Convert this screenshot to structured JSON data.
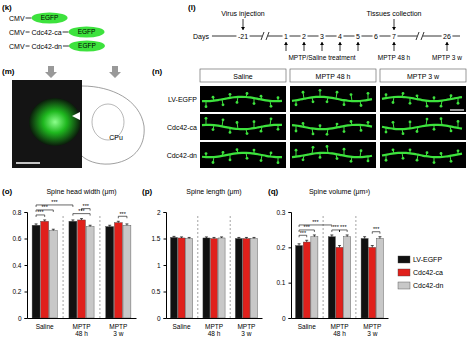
{
  "diagram": {
    "k": {
      "label": "(k)",
      "constructs": [
        {
          "promoter": "CMV",
          "reporter": "EGFP"
        },
        {
          "promoter": "CMV",
          "insert": "Cdc42-ca",
          "reporter": "EGFP"
        },
        {
          "promoter": "CMV",
          "insert": "Cdc42-dn",
          "reporter": "EGFP"
        }
      ]
    },
    "l": {
      "label": "(l)",
      "days_label": "Days",
      "days": [
        "-21",
        "1",
        "2",
        "3",
        "4",
        "5",
        "6",
        "7",
        "26"
      ],
      "top_events": [
        {
          "text": "Virus injection",
          "day": "-21"
        },
        {
          "text": "Tissues collection",
          "day": "7"
        }
      ],
      "treatment": {
        "text": "MPTP/Saline treatment",
        "days": [
          "1",
          "2",
          "3",
          "4",
          "5"
        ]
      },
      "bottom_events": [
        {
          "text": "MPTP 48 h",
          "day": "7"
        },
        {
          "text": "MPTP 3 w",
          "day": "26"
        }
      ]
    },
    "m": {
      "label": "(m)",
      "region": "CPu"
    },
    "n": {
      "label": "(n)",
      "columns": [
        "Saline",
        "MPTP 48 h",
        "MPTP 3 w"
      ],
      "rows": [
        "LV-EGFP",
        "Cdc42-ca",
        "Cdc42-dn"
      ]
    }
  },
  "chart_data": [
    {
      "type": "bar",
      "panel": "(o)",
      "title": "Spine head width (μm)",
      "categories": [
        "Saline",
        "MPTP 48 h",
        "MPTP 3 w"
      ],
      "series": [
        {
          "color": "#111111",
          "values": [
            0.7,
            0.73,
            0.69
          ],
          "errors": [
            0.01,
            0.01,
            0.01
          ]
        },
        {
          "color": "#e0201b",
          "values": [
            0.73,
            0.74,
            0.72
          ],
          "errors": [
            0.01,
            0.01,
            0.01
          ]
        },
        {
          "color": "#c8c8c8",
          "values": [
            0.66,
            0.69,
            0.7
          ],
          "errors": [
            0.01,
            0.01,
            0.01
          ]
        }
      ],
      "ylim": [
        0,
        0.8
      ],
      "yticks": [
        0,
        0.2,
        0.4,
        0.6,
        0.8
      ],
      "annotations": [
        {
          "text": "***",
          "from": [
            0,
            0
          ],
          "to": [
            0,
            1
          ]
        },
        {
          "text": "***",
          "from": [
            0,
            0
          ],
          "to": [
            0,
            2
          ]
        },
        {
          "text": "***",
          "from": [
            0,
            0
          ],
          "to": [
            1,
            0
          ]
        },
        {
          "text": "***",
          "from": [
            1,
            0
          ],
          "to": [
            1,
            2
          ]
        },
        {
          "text": "***",
          "from": [
            1,
            1
          ],
          "to": [
            1,
            2
          ]
        },
        {
          "text": "***",
          "from": [
            2,
            1
          ],
          "to": [
            2,
            2
          ]
        }
      ]
    },
    {
      "type": "bar",
      "panel": "(p)",
      "title": "Spine length (μm)",
      "categories": [
        "Saline",
        "MPTP 48 h",
        "MPTP 3 w"
      ],
      "series": [
        {
          "color": "#111111",
          "values": [
            1.52,
            1.51,
            1.5
          ],
          "errors": [
            0.02,
            0.02,
            0.02
          ]
        },
        {
          "color": "#e0201b",
          "values": [
            1.51,
            1.5,
            1.5
          ],
          "errors": [
            0.02,
            0.02,
            0.02
          ]
        },
        {
          "color": "#c8c8c8",
          "values": [
            1.5,
            1.51,
            1.5
          ],
          "errors": [
            0.02,
            0.02,
            0.02
          ]
        }
      ],
      "ylim": [
        0,
        2
      ],
      "yticks": [
        0,
        0.5,
        1,
        1.5,
        2
      ]
    },
    {
      "type": "bar",
      "panel": "(q)",
      "title": "Spine volume (μm³)",
      "categories": [
        "Saline",
        "MPTP 48 h",
        "MPTP 3 w"
      ],
      "series": [
        {
          "name": "LV-EGFP",
          "color": "#111111",
          "values": [
            0.205,
            0.23,
            0.225
          ],
          "errors": [
            0.005,
            0.005,
            0.005
          ]
        },
        {
          "name": "Cdc42-ca",
          "color": "#e0201b",
          "values": [
            0.215,
            0.2,
            0.2
          ],
          "errors": [
            0.005,
            0.005,
            0.005
          ]
        },
        {
          "name": "Cdc42-dn",
          "color": "#c8c8c8",
          "values": [
            0.23,
            0.23,
            0.225
          ],
          "errors": [
            0.005,
            0.005,
            0.005
          ]
        }
      ],
      "ylim": [
        0,
        0.3
      ],
      "yticks": [
        0,
        0.1,
        0.2,
        0.3
      ],
      "legend": "right",
      "annotations": [
        {
          "text": "***",
          "from": [
            0,
            0
          ],
          "to": [
            0,
            1
          ]
        },
        {
          "text": "***",
          "from": [
            0,
            0
          ],
          "to": [
            0,
            2
          ]
        },
        {
          "text": "***",
          "from": [
            0,
            0
          ],
          "to": [
            1,
            0
          ]
        },
        {
          "text": "***",
          "from": [
            1,
            0
          ],
          "to": [
            1,
            1
          ]
        },
        {
          "text": "***",
          "from": [
            1,
            1
          ],
          "to": [
            1,
            2
          ]
        },
        {
          "text": "***",
          "from": [
            2,
            1
          ],
          "to": [
            2,
            2
          ]
        }
      ]
    }
  ]
}
